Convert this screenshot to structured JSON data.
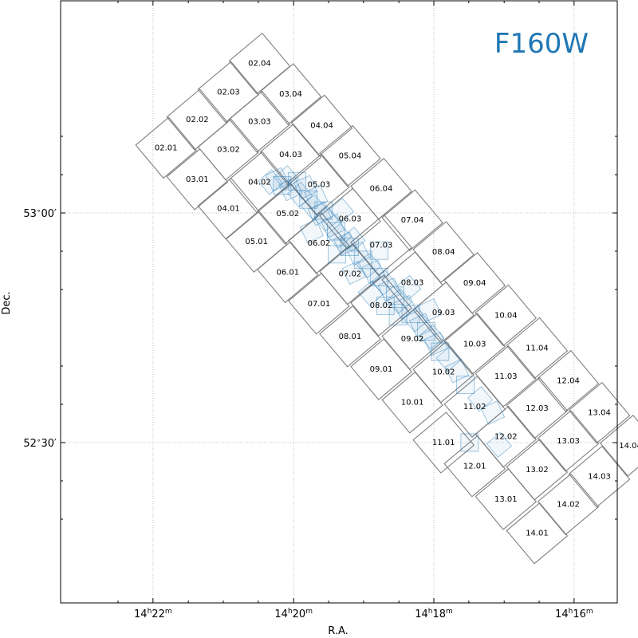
{
  "chart_data": {
    "type": "scatter",
    "title": "F160W",
    "xlabel": "R.A.",
    "ylabel": "Dec.",
    "grid": true,
    "xlim_ra_hours": [
      14.38,
      14.263
    ],
    "ylim_dec_deg": [
      52.32,
      53.23
    ],
    "x_ticks": [
      {
        "value": 14.3667,
        "h": "14",
        "m": "22"
      },
      {
        "value": 14.3333,
        "h": "14",
        "m": "20"
      },
      {
        "value": 14.3,
        "h": "14",
        "m": "18"
      },
      {
        "value": 14.2667,
        "h": "14",
        "m": "16"
      }
    ],
    "y_ticks": [
      {
        "value": 53.0,
        "deg": "53",
        "min": "00"
      },
      {
        "value": 52.5,
        "deg": "52",
        "min": "30"
      }
    ],
    "x_minor_ticks": [
      14.375,
      14.3583,
      14.35,
      14.3417,
      14.325,
      14.3167,
      14.3083,
      14.2917,
      14.2833,
      14.275
    ],
    "y_minor_ticks": [
      53.1667,
      53.0833,
      52.9167,
      52.8333,
      52.6667,
      52.5833,
      52.4167,
      52.3333
    ],
    "grid_color": "#b0b0b0",
    "tile_color": "#808080",
    "exposure_color": "#1f77b4",
    "tiles": [
      {
        "label": "02.01",
        "ra": 14.3636,
        "dec": 53.1419
      },
      {
        "label": "02.02",
        "ra": 14.3562,
        "dec": 53.203
      },
      {
        "label": "02.03",
        "ra": 14.3488,
        "dec": 53.2632
      },
      {
        "label": "02.04",
        "ra": 14.3414,
        "dec": 53.3253
      },
      {
        "label": "03.01",
        "ra": 14.3562,
        "dec": 53.073
      },
      {
        "label": "03.02",
        "ra": 14.3488,
        "dec": 53.1382
      },
      {
        "label": "03.03",
        "ra": 14.3414,
        "dec": 53.1985
      },
      {
        "label": "03.04",
        "ra": 14.334,
        "dec": 53.2587
      },
      {
        "label": "04.01",
        "ra": 14.3488,
        "dec": 53.0097
      },
      {
        "label": "04.02",
        "ra": 14.3414,
        "dec": 53.0669
      },
      {
        "label": "04.03",
        "ra": 14.334,
        "dec": 53.1271
      },
      {
        "label": "04.04",
        "ra": 14.3266,
        "dec": 53.1903
      },
      {
        "label": "05.01",
        "ra": 14.3421,
        "dec": 52.9373
      },
      {
        "label": "05.02",
        "ra": 14.3347,
        "dec": 52.9986
      },
      {
        "label": "05.03",
        "ra": 14.3273,
        "dec": 53.0619
      },
      {
        "label": "05.04",
        "ra": 14.3199,
        "dec": 53.124
      },
      {
        "label": "06.01",
        "ra": 14.3347,
        "dec": 52.871
      },
      {
        "label": "06.02",
        "ra": 14.3273,
        "dec": 52.9342
      },
      {
        "label": "06.03",
        "ra": 14.3199,
        "dec": 52.9873
      },
      {
        "label": "06.04",
        "ra": 14.3125,
        "dec": 53.0526
      },
      {
        "label": "07.01",
        "ra": 14.3273,
        "dec": 52.8025
      },
      {
        "label": "07.02",
        "ra": 14.3199,
        "dec": 52.8669
      },
      {
        "label": "07.03",
        "ra": 14.3125,
        "dec": 52.9301
      },
      {
        "label": "07.04",
        "ra": 14.3051,
        "dec": 52.9842
      },
      {
        "label": "08.01",
        "ra": 14.3199,
        "dec": 52.7311
      },
      {
        "label": "08.02",
        "ra": 14.3125,
        "dec": 52.7985
      },
      {
        "label": "08.03",
        "ra": 14.3051,
        "dec": 52.8485
      },
      {
        "label": "08.04",
        "ra": 14.2977,
        "dec": 52.9148
      },
      {
        "label": "09.01",
        "ra": 14.3125,
        "dec": 52.6597
      },
      {
        "label": "09.02",
        "ra": 14.3051,
        "dec": 52.726
      },
      {
        "label": "09.03",
        "ra": 14.2977,
        "dec": 52.7832
      },
      {
        "label": "09.04",
        "ra": 14.2903,
        "dec": 52.8475
      },
      {
        "label": "10.01",
        "ra": 14.3051,
        "dec": 52.5873
      },
      {
        "label": "10.02",
        "ra": 14.2977,
        "dec": 52.6536
      },
      {
        "label": "10.03",
        "ra": 14.2903,
        "dec": 52.7148
      },
      {
        "label": "10.04",
        "ra": 14.2829,
        "dec": 52.777
      },
      {
        "label": "11.01",
        "ra": 14.2977,
        "dec": 52.5
      },
      {
        "label": "11.02",
        "ra": 14.2903,
        "dec": 52.5781
      },
      {
        "label": "11.03",
        "ra": 14.2829,
        "dec": 52.6444
      },
      {
        "label": "11.04",
        "ra": 14.2755,
        "dec": 52.7056
      },
      {
        "label": "12.01",
        "ra": 14.2903,
        "dec": 52.4485
      },
      {
        "label": "12.02",
        "ra": 14.2829,
        "dec": 52.5128
      },
      {
        "label": "12.03",
        "ra": 14.2755,
        "dec": 52.575
      },
      {
        "label": "12.04",
        "ra": 14.2681,
        "dec": 52.6342
      },
      {
        "label": "13.01",
        "ra": 14.2829,
        "dec": 52.3771
      },
      {
        "label": "13.02",
        "ra": 14.2755,
        "dec": 52.4413
      },
      {
        "label": "13.03",
        "ra": 14.2681,
        "dec": 52.5035
      },
      {
        "label": "13.04",
        "ra": 14.2607,
        "dec": 52.5648
      },
      {
        "label": "14.01",
        "ra": 14.2755,
        "dec": 52.3026
      },
      {
        "label": "14.02",
        "ra": 14.2681,
        "dec": 52.3658
      },
      {
        "label": "14.03",
        "ra": 14.2607,
        "dec": 52.426
      },
      {
        "label": "14.04",
        "ra": 14.2533,
        "dec": 52.4934
      }
    ],
    "exposures": [
      {
        "ra": 14.3388,
        "dec": 53.0668
      },
      {
        "ra": 14.3372,
        "dec": 53.073
      },
      {
        "ra": 14.336,
        "dec": 53.06
      },
      {
        "ra": 14.335,
        "dec": 53.076
      },
      {
        "ra": 14.334,
        "dec": 53.052
      },
      {
        "ra": 14.3325,
        "dec": 53.069
      },
      {
        "ra": 14.3318,
        "dec": 53.04
      },
      {
        "ra": 14.3305,
        "dec": 53.056
      },
      {
        "ra": 14.3298,
        "dec": 53.029
      },
      {
        "ra": 14.3286,
        "dec": 53.013
      },
      {
        "ra": 14.3271,
        "dec": 52.998
      },
      {
        "ra": 14.3262,
        "dec": 53.005
      },
      {
        "ra": 14.3255,
        "dec": 52.987
      },
      {
        "ra": 14.324,
        "dec": 52.972
      },
      {
        "ra": 14.3232,
        "dec": 52.96
      },
      {
        "ra": 14.3225,
        "dec": 52.95
      },
      {
        "ra": 14.321,
        "dec": 52.933
      },
      {
        "ra": 14.32,
        "dec": 52.926
      },
      {
        "ra": 14.3192,
        "dec": 52.942
      },
      {
        "ra": 14.318,
        "dec": 52.912
      },
      {
        "ra": 14.3168,
        "dec": 52.898
      },
      {
        "ra": 14.3155,
        "dec": 52.886
      },
      {
        "ra": 14.3143,
        "dec": 52.872
      },
      {
        "ra": 14.313,
        "dec": 52.86
      },
      {
        "ra": 14.3118,
        "dec": 52.848
      },
      {
        "ra": 14.3105,
        "dec": 52.833
      },
      {
        "ra": 14.3092,
        "dec": 52.82
      },
      {
        "ra": 14.3082,
        "dec": 52.808
      },
      {
        "ra": 14.3068,
        "dec": 52.795
      },
      {
        "ra": 14.3055,
        "dec": 52.78
      },
      {
        "ra": 14.3043,
        "dec": 52.768
      },
      {
        "ra": 14.303,
        "dec": 52.756
      },
      {
        "ra": 14.3018,
        "dec": 52.742
      },
      {
        "ra": 14.3005,
        "dec": 52.73
      },
      {
        "ra": 14.2995,
        "dec": 52.715
      },
      {
        "ra": 14.2985,
        "dec": 52.698
      },
      {
        "ra": 14.2965,
        "dec": 52.682
      },
      {
        "ra": 14.2945,
        "dec": 52.656
      },
      {
        "ra": 14.2925,
        "dec": 52.626
      },
      {
        "ra": 14.289,
        "dec": 52.595
      },
      {
        "ra": 14.286,
        "dec": 52.565
      },
      {
        "ra": 14.2915,
        "dec": 52.5
      },
      {
        "ra": 14.2845,
        "dec": 52.495
      },
      {
        "ra": 14.329,
        "dec": 52.96
      },
      {
        "ra": 14.323,
        "dec": 52.91
      },
      {
        "ra": 14.315,
        "dec": 52.825
      },
      {
        "ra": 14.319,
        "dec": 52.87
      },
      {
        "ra": 14.3085,
        "dec": 52.775
      },
      {
        "ra": 14.322,
        "dec": 53.005
      },
      {
        "ra": 14.328,
        "dec": 53.035
      },
      {
        "ra": 14.313,
        "dec": 52.918
      },
      {
        "ra": 14.306,
        "dec": 52.837
      },
      {
        "ra": 14.301,
        "dec": 52.788
      },
      {
        "ra": 14.3115,
        "dec": 52.798
      }
    ],
    "annotations": []
  }
}
